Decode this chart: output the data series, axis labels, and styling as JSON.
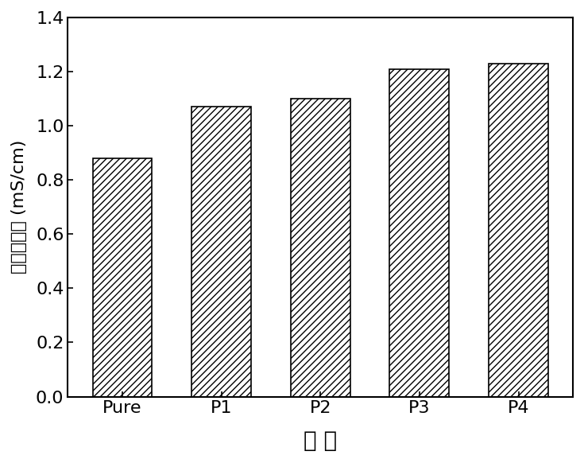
{
  "categories": [
    "Pure",
    "P1",
    "P2",
    "P3",
    "P4"
  ],
  "values": [
    0.88,
    1.07,
    1.1,
    1.21,
    1.23
  ],
  "bar_color": "white",
  "bar_edgecolor": "black",
  "hatch": "////",
  "title": "",
  "xlabel": "样 品",
  "ylabel": "离子电导率 (mS/cm)",
  "ylim": [
    0,
    1.4
  ],
  "yticks": [
    0.0,
    0.2,
    0.4,
    0.6,
    0.8,
    1.0,
    1.2,
    1.4
  ],
  "xlabel_fontsize": 20,
  "ylabel_fontsize": 16,
  "tick_fontsize": 16,
  "bar_width": 0.6,
  "background_color": "#ffffff"
}
